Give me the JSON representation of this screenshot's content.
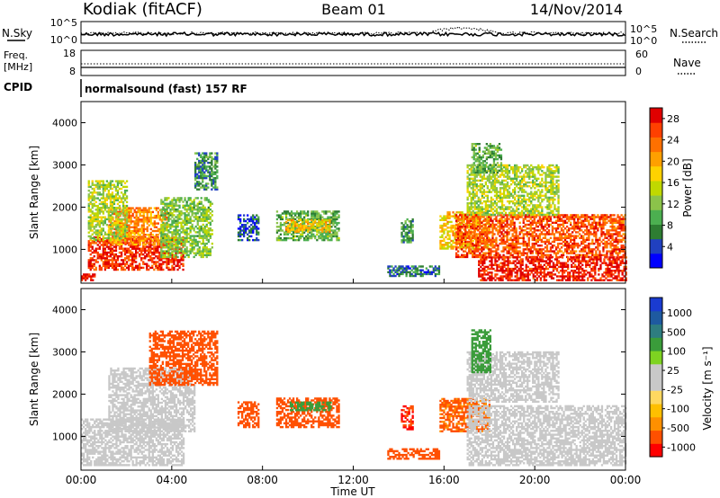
{
  "header": {
    "station": "Kodiak (fitACF)",
    "beam": "Beam 01",
    "date": "14/Nov/2014"
  },
  "left_labels": {
    "nsky": "N.Sky",
    "freq_line1": "Freq.",
    "freq_line2": "[MHz]",
    "cpid": "CPID"
  },
  "right_labels": {
    "nsearch": "N.Search",
    "nave": "Nave"
  },
  "noise_panel": {
    "left_ticks": [
      "10^5",
      "10^0"
    ],
    "right_ticks": [
      "10^5",
      "10^0"
    ]
  },
  "freq_panel": {
    "left_ticks": [
      "18",
      "8"
    ],
    "right_ticks": [
      "60",
      "0"
    ]
  },
  "cpid_text": "normalsound (fast) 157 RF",
  "colors": {
    "power_scale": [
      "#0000ff",
      "#2040c0",
      "#2e7d32",
      "#4caf50",
      "#8bc34a",
      "#c0d800",
      "#ffd200",
      "#ffa000",
      "#ff7000",
      "#ff4000",
      "#e00000"
    ],
    "velocity_scale": [
      "#ff0000",
      "#ff5000",
      "#ff9000",
      "#ffbf00",
      "#ffd860",
      "#c8c8c8",
      "#c8c8c8",
      "#7ed321",
      "#3a9c3a",
      "#2e7d80",
      "#1e5aa0",
      "#1a3bd0"
    ],
    "ground_scatter": "#c8c8c8"
  },
  "chart_data": [
    {
      "type": "heatmap",
      "panel": "power",
      "ylabel": "Slant Range [km]",
      "yticks": [
        "1000",
        "2000",
        "3000",
        "4000"
      ],
      "ylim": [
        200,
        4500
      ],
      "colorbar_label": "Power [dB]",
      "colorbar_ticks": [
        "4",
        "8",
        "12",
        "16",
        "20",
        "24",
        "28"
      ],
      "colorbar_range": [
        0,
        30
      ],
      "regions": [
        {
          "x": [
            0.0,
            0.6
          ],
          "y": [
            250,
            420
          ],
          "v": 28
        },
        {
          "x": [
            0.3,
            4.5
          ],
          "y": [
            500,
            1300
          ],
          "v": 27
        },
        {
          "x": [
            1.2,
            3.8
          ],
          "y": [
            1100,
            2000
          ],
          "v": 22
        },
        {
          "x": [
            0.3,
            2.0
          ],
          "y": [
            1200,
            2600
          ],
          "v": 14
        },
        {
          "x": [
            3.5,
            5.8
          ],
          "y": [
            800,
            2200
          ],
          "v": 12
        },
        {
          "x": [
            5.0,
            6.0
          ],
          "y": [
            2400,
            3300
          ],
          "v": 8
        },
        {
          "x": [
            6.9,
            7.8
          ],
          "y": [
            1200,
            1800
          ],
          "v": 5
        },
        {
          "x": [
            8.6,
            11.4
          ],
          "y": [
            1200,
            1900
          ],
          "v": 10
        },
        {
          "x": [
            9.0,
            11.0
          ],
          "y": [
            1400,
            1700
          ],
          "v": 18
        },
        {
          "x": [
            14.1,
            14.6
          ],
          "y": [
            1150,
            1700
          ],
          "v": 8
        },
        {
          "x": [
            13.5,
            15.8
          ],
          "y": [
            350,
            600
          ],
          "v": 6
        },
        {
          "x": [
            15.8,
            18.0
          ],
          "y": [
            1000,
            1900
          ],
          "v": 18
        },
        {
          "x": [
            16.5,
            24.0
          ],
          "y": [
            800,
            1800
          ],
          "v": 25
        },
        {
          "x": [
            17.5,
            24.0
          ],
          "y": [
            250,
            800
          ],
          "v": 28
        },
        {
          "x": [
            17.0,
            21.0
          ],
          "y": [
            1800,
            3000
          ],
          "v": 14
        },
        {
          "x": [
            17.2,
            18.5
          ],
          "y": [
            2800,
            3500
          ],
          "v": 10
        }
      ]
    },
    {
      "type": "heatmap",
      "panel": "velocity",
      "ylabel": "Slant Range [km]",
      "yticks": [
        "1000",
        "2000",
        "3000",
        "4000"
      ],
      "ylim": [
        200,
        4500
      ],
      "colorbar_label": "Velocity [m s⁻¹]",
      "colorbar_ticks": [
        "1000",
        "500",
        "100",
        "25",
        "-25",
        "-100",
        "-500",
        "-1000"
      ],
      "xlabel": "Time UT",
      "xticks": [
        "00:00",
        "04:00",
        "08:00",
        "12:00",
        "16:00",
        "20:00",
        "00:00"
      ],
      "xlim": [
        0,
        24
      ],
      "regions": [
        {
          "x": [
            0.0,
            4.5
          ],
          "y": [
            300,
            1400
          ],
          "v": 0
        },
        {
          "x": [
            1.2,
            5.0
          ],
          "y": [
            1100,
            2600
          ],
          "v": 0
        },
        {
          "x": [
            3.0,
            6.0
          ],
          "y": [
            2200,
            3500
          ],
          "v": -150
        },
        {
          "x": [
            6.9,
            7.8
          ],
          "y": [
            1200,
            1800
          ],
          "v": -300
        },
        {
          "x": [
            8.6,
            11.4
          ],
          "y": [
            1200,
            1900
          ],
          "v": -200
        },
        {
          "x": [
            9.2,
            11.0
          ],
          "y": [
            1600,
            1800
          ],
          "v": 150
        },
        {
          "x": [
            14.1,
            14.6
          ],
          "y": [
            1150,
            1700
          ],
          "v": -500
        },
        {
          "x": [
            13.5,
            15.8
          ],
          "y": [
            450,
            700
          ],
          "v": -150
        },
        {
          "x": [
            15.8,
            18.0
          ],
          "y": [
            1100,
            1900
          ],
          "v": -120
        },
        {
          "x": [
            17.0,
            24.0
          ],
          "y": [
            300,
            1700
          ],
          "v": 0
        },
        {
          "x": [
            17.0,
            21.0
          ],
          "y": [
            1800,
            3000
          ],
          "v": 0
        },
        {
          "x": [
            17.2,
            18.0
          ],
          "y": [
            2500,
            3500
          ],
          "v": 150
        }
      ]
    }
  ]
}
